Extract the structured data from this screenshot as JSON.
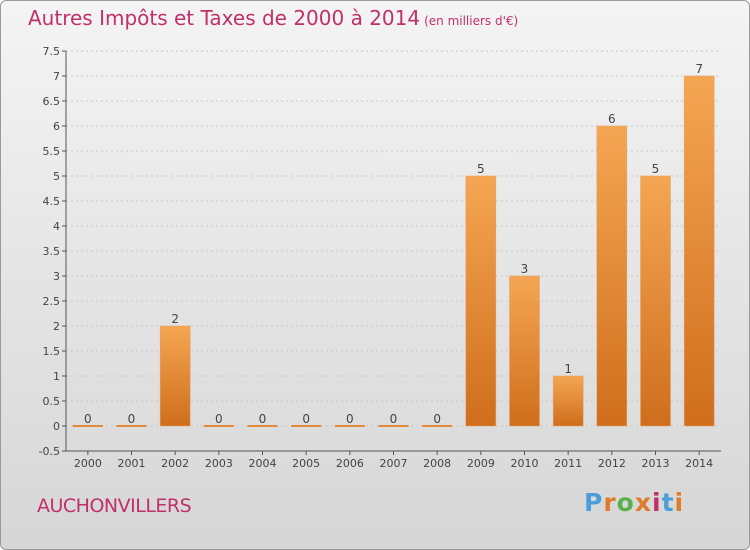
{
  "header": {
    "title": "Autres Impôts et Taxes de 2000 à 2014",
    "subtitle": "(en milliers d'€)"
  },
  "footer": {
    "town": "AUCHONVILLERS",
    "logo": "Proxiti",
    "logo_colors": [
      "#4a9fd8",
      "#e07b2a",
      "#5ab04a",
      "#e07b2a",
      "#c0306a",
      "#4a9fd8",
      "#e07b2a"
    ]
  },
  "chart_data": {
    "type": "bar",
    "categories": [
      "2000",
      "2001",
      "2002",
      "2003",
      "2004",
      "2005",
      "2006",
      "2007",
      "2008",
      "2009",
      "2010",
      "2011",
      "2012",
      "2013",
      "2014"
    ],
    "values": [
      0,
      0,
      2,
      0,
      0,
      0,
      0,
      0,
      0,
      5,
      3,
      1,
      6,
      5,
      7
    ],
    "data_labels": [
      "0",
      "0",
      "2",
      "0",
      "0",
      "0",
      "0",
      "0",
      "0",
      "5",
      "3",
      "1",
      "6",
      "5",
      "7"
    ],
    "ylim": [
      -0.5,
      7.5
    ],
    "y_ticks": [
      "-0.5",
      "0",
      "0.5",
      "1",
      "1.5",
      "2",
      "2.5",
      "3",
      "3.5",
      "4",
      "4.5",
      "5",
      "5.5",
      "6",
      "6.5",
      "7",
      "7.5"
    ],
    "grid": true,
    "bar_color_top": "#f5a653",
    "bar_color_bottom": "#cf6e1c",
    "title_color": "#c0306a"
  }
}
